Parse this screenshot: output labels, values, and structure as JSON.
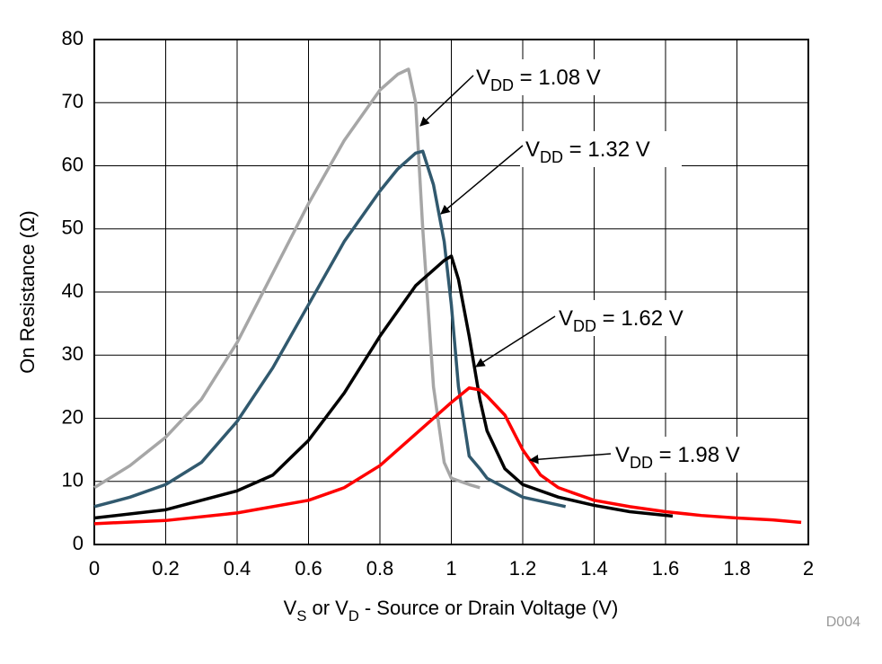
{
  "chart_data": {
    "type": "line",
    "y_label": "On Resistance (Ω)",
    "x_label": [
      {
        "text": "V"
      },
      {
        "text": "S",
        "subscript": true
      },
      {
        "text": " or V"
      },
      {
        "text": "D",
        "subscript": true
      },
      {
        "text": " - Source or Drain Voltage (V)"
      }
    ],
    "footnote": "D004",
    "xlim": [
      0,
      2
    ],
    "xticks": [
      0,
      0.2,
      0.4,
      0.6,
      0.8,
      1,
      1.2,
      1.4,
      1.6,
      1.8,
      2
    ],
    "ylim": [
      0,
      80
    ],
    "yticks": [
      0,
      10,
      20,
      30,
      40,
      50,
      60,
      70,
      80
    ],
    "grid": true,
    "series": [
      {
        "label": [
          {
            "text": "V"
          },
          {
            "text": "DD",
            "subscript": true
          },
          {
            "text": " = 1.08 V"
          }
        ],
        "color": "#a6a6a6",
        "x": [
          0,
          0.1,
          0.2,
          0.3,
          0.4,
          0.5,
          0.6,
          0.7,
          0.8,
          0.85,
          0.88,
          0.9,
          0.92,
          0.95,
          0.98,
          1.0,
          1.05,
          1.08
        ],
        "values": [
          9,
          12.5,
          17,
          23,
          32,
          43,
          54,
          64,
          72,
          74.5,
          75.3,
          70,
          50,
          25,
          13,
          10.5,
          9.5,
          9
        ]
      },
      {
        "label": [
          {
            "text": "V"
          },
          {
            "text": "DD",
            "subscript": true
          },
          {
            "text": " = 1.32 V"
          }
        ],
        "color": "#31596e",
        "x": [
          0,
          0.1,
          0.2,
          0.3,
          0.4,
          0.5,
          0.6,
          0.7,
          0.8,
          0.85,
          0.9,
          0.92,
          0.95,
          0.98,
          1.0,
          1.02,
          1.05,
          1.08,
          1.1,
          1.2,
          1.32
        ],
        "values": [
          6,
          7.5,
          9.5,
          13,
          19.5,
          28,
          38,
          48,
          56,
          59.5,
          62,
          62.3,
          57,
          48,
          38,
          25,
          14,
          12,
          10.5,
          7.5,
          6
        ]
      },
      {
        "label": [
          {
            "text": "V"
          },
          {
            "text": "DD",
            "subscript": true
          },
          {
            "text": " = 1.62 V"
          }
        ],
        "color": "#000000",
        "x": [
          0,
          0.2,
          0.4,
          0.5,
          0.6,
          0.7,
          0.8,
          0.9,
          0.95,
          0.98,
          1.0,
          1.02,
          1.05,
          1.08,
          1.1,
          1.15,
          1.2,
          1.3,
          1.4,
          1.5,
          1.62
        ],
        "values": [
          4.2,
          5.5,
          8.5,
          11,
          16.5,
          24,
          33,
          41,
          43.5,
          45,
          45.7,
          42,
          33,
          23,
          18,
          12,
          9.5,
          7.5,
          6.2,
          5.2,
          4.5
        ]
      },
      {
        "label": [
          {
            "text": "V"
          },
          {
            "text": "DD",
            "subscript": true
          },
          {
            "text": " = 1.98 V"
          }
        ],
        "color": "#ff0000",
        "x": [
          0,
          0.2,
          0.4,
          0.6,
          0.7,
          0.8,
          0.9,
          1.0,
          1.05,
          1.08,
          1.1,
          1.15,
          1.2,
          1.25,
          1.3,
          1.4,
          1.5,
          1.6,
          1.7,
          1.8,
          1.9,
          1.98
        ],
        "values": [
          3.3,
          3.8,
          5,
          7,
          9,
          12.5,
          17.5,
          22.5,
          24.8,
          24.5,
          23.5,
          20.5,
          15,
          11,
          9,
          7,
          6,
          5.2,
          4.6,
          4.2,
          3.9,
          3.5
        ]
      }
    ]
  }
}
